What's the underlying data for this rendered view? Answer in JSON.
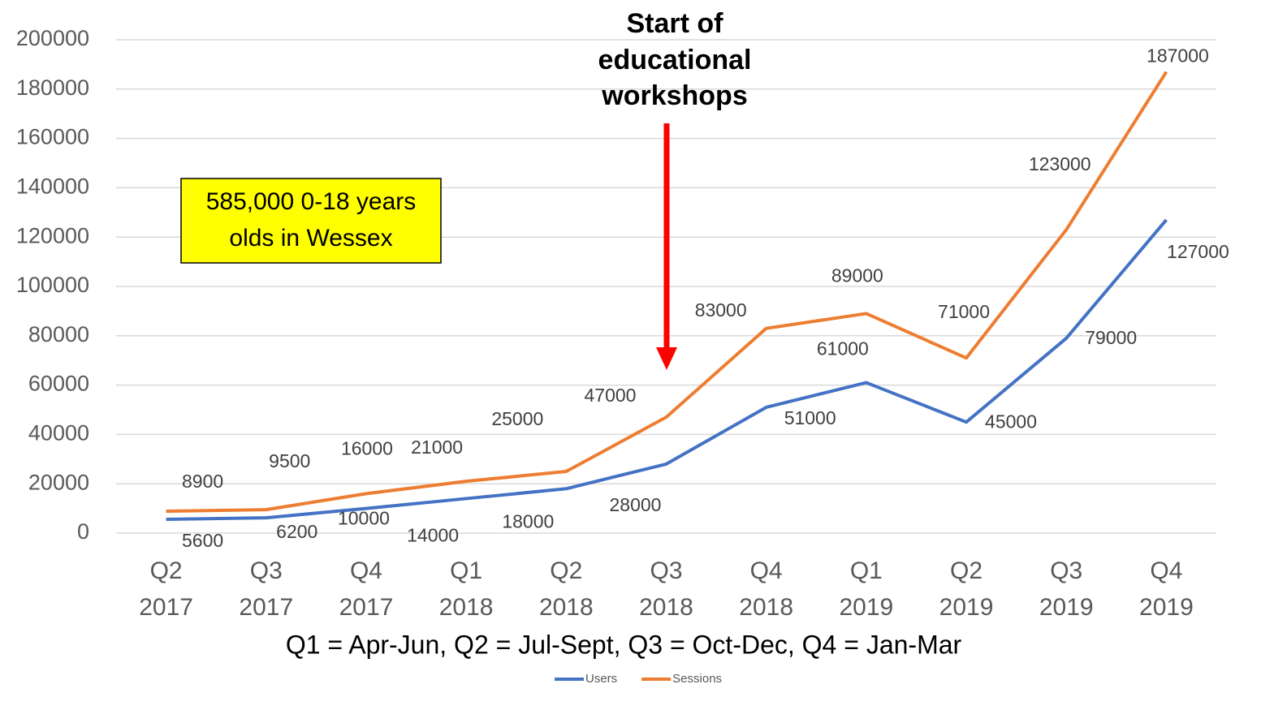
{
  "chart_data": {
    "type": "line",
    "categories": [
      [
        "Q2",
        "2017"
      ],
      [
        "Q3",
        "2017"
      ],
      [
        "Q4",
        "2017"
      ],
      [
        "Q1",
        "2018"
      ],
      [
        "Q2",
        "2018"
      ],
      [
        "Q3",
        "2018"
      ],
      [
        "Q4",
        "2018"
      ],
      [
        "Q1",
        "2019"
      ],
      [
        "Q2",
        "2019"
      ],
      [
        "Q3",
        "2019"
      ],
      [
        "Q4",
        "2019"
      ]
    ],
    "series": [
      {
        "name": "Users",
        "color": "#4472c4",
        "values": [
          5600,
          6200,
          10000,
          14000,
          18000,
          28000,
          51000,
          61000,
          45000,
          79000,
          127000
        ]
      },
      {
        "name": "Sessions",
        "color": "#ed7d31",
        "values": [
          8900,
          9500,
          16000,
          21000,
          25000,
          47000,
          83000,
          89000,
          71000,
          123000,
          187000
        ]
      }
    ],
    "ylim": [
      0,
      200000
    ],
    "yticks": [
      0,
      20000,
      40000,
      60000,
      80000,
      100000,
      120000,
      140000,
      160000,
      180000,
      200000
    ],
    "grid": true,
    "legend": "bottom",
    "annotations": {
      "arrow_text": [
        "Start of",
        "educational",
        "workshops"
      ],
      "box_text": [
        "585,000 0-18 years",
        "olds in Wessex"
      ],
      "footnote": "Q1 = Apr-Jun, Q2 = Jul-Sept, Q3 = Oct-Dec, Q4 = Jan-Mar"
    }
  }
}
